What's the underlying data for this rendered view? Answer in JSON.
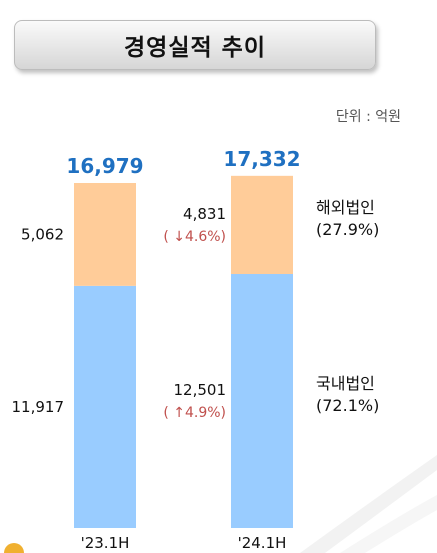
{
  "title": "경영실적 추이",
  "unit": "단위 : 억원",
  "colors": {
    "overseas": "#FFCC99",
    "domestic": "#99CCFF",
    "total": "#1F70C1",
    "change": "#C0504D"
  },
  "chart_data": {
    "type": "bar",
    "stacked": true,
    "categories": [
      "'23.1H",
      "'24.1H"
    ],
    "series": [
      {
        "name": "국내법인",
        "share_label": "(72.1%)",
        "values": [
          11917,
          12501
        ],
        "value_labels": [
          "11,917",
          "12,501"
        ],
        "changes": [
          "",
          "( ↑4.9%)"
        ]
      },
      {
        "name": "해외법인",
        "share_label": "(27.9%)",
        "values": [
          5062,
          4831
        ],
        "value_labels": [
          "5,062",
          "4,831"
        ],
        "changes": [
          "",
          "( ↓4.6%)"
        ]
      }
    ],
    "totals": [
      16979,
      17332
    ],
    "total_labels": [
      "16,979",
      "17,332"
    ]
  }
}
